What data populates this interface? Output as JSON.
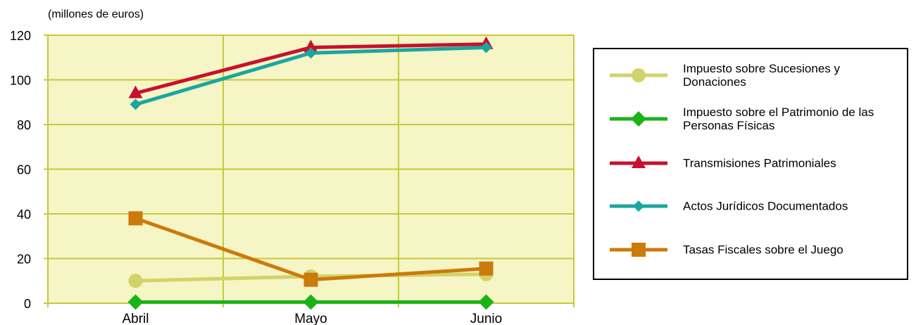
{
  "chart_data": {
    "type": "line",
    "title": "",
    "unit_label": "(millones de euros)",
    "xlabel": "",
    "ylabel": "",
    "categories": [
      "Abril",
      "Mayo",
      "Junio"
    ],
    "ylim": [
      0,
      120
    ],
    "yticks": [
      0,
      20,
      40,
      60,
      80,
      100,
      120
    ],
    "grid": true,
    "plot_background": "#f5f5c6",
    "grid_color": "#c8c83a",
    "legend_position": "right",
    "series": [
      {
        "name": "Impuesto sobre Sucesiones y Donaciones",
        "values": [
          10,
          12,
          13
        ],
        "color": "#d2d26a",
        "marker": "circle"
      },
      {
        "name": "Impuesto sobre el Patrimonio de las Personas Físicas",
        "values": [
          0.5,
          0.5,
          0.5
        ],
        "color": "#19b319",
        "marker": "diamond"
      },
      {
        "name": "Transmisiones Patrimoniales",
        "values": [
          94,
          114.5,
          116
        ],
        "color": "#c8102e",
        "marker": "triangle"
      },
      {
        "name": "Actos Jurídicos Documentados",
        "values": [
          89,
          112,
          114.5
        ],
        "color": "#1aa6a0",
        "marker": "diamond-small"
      },
      {
        "name": "Tasas Fiscales sobre el Juego",
        "values": [
          38,
          10.5,
          15.5
        ],
        "color": "#cc7a0a",
        "marker": "square"
      }
    ]
  }
}
